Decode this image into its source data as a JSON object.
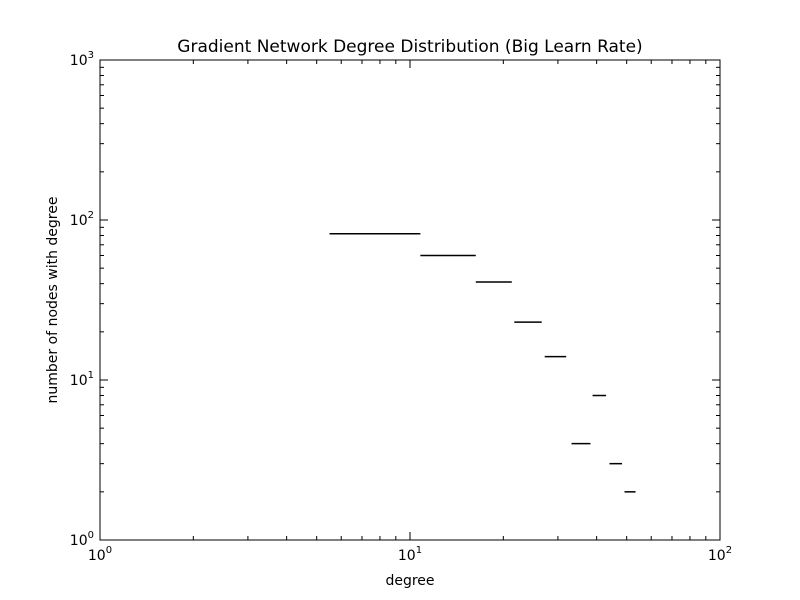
{
  "chart_data": {
    "type": "line",
    "title": "Gradient Network Degree Distribution (Big Learn Rate)",
    "xlabel": "degree",
    "ylabel": "number of nodes with degree",
    "xscale": "log",
    "yscale": "log",
    "xlim": [
      1,
      100
    ],
    "ylim": [
      1,
      1000
    ],
    "grid": false,
    "x_ticks": [
      {
        "base": "10",
        "exp": "0"
      },
      {
        "base": "10",
        "exp": "1"
      },
      {
        "base": "10",
        "exp": "2"
      }
    ],
    "y_ticks": [
      {
        "base": "10",
        "exp": "0"
      },
      {
        "base": "10",
        "exp": "1"
      },
      {
        "base": "10",
        "exp": "2"
      },
      {
        "base": "10",
        "exp": "3"
      }
    ],
    "segments": [
      {
        "x_start": 5.5,
        "x_end": 10.8,
        "y": 82
      },
      {
        "x_start": 10.8,
        "x_end": 16.3,
        "y": 60
      },
      {
        "x_start": 16.3,
        "x_end": 21.3,
        "y": 41
      },
      {
        "x_start": 21.7,
        "x_end": 26.6,
        "y": 23
      },
      {
        "x_start": 27.2,
        "x_end": 31.9,
        "y": 14
      },
      {
        "x_start": 38.8,
        "x_end": 42.9,
        "y": 8
      },
      {
        "x_start": 33.2,
        "x_end": 38.2,
        "y": 4
      },
      {
        "x_start": 44.0,
        "x_end": 48.3,
        "y": 3
      },
      {
        "x_start": 49.2,
        "x_end": 53.4,
        "y": 2
      }
    ]
  }
}
